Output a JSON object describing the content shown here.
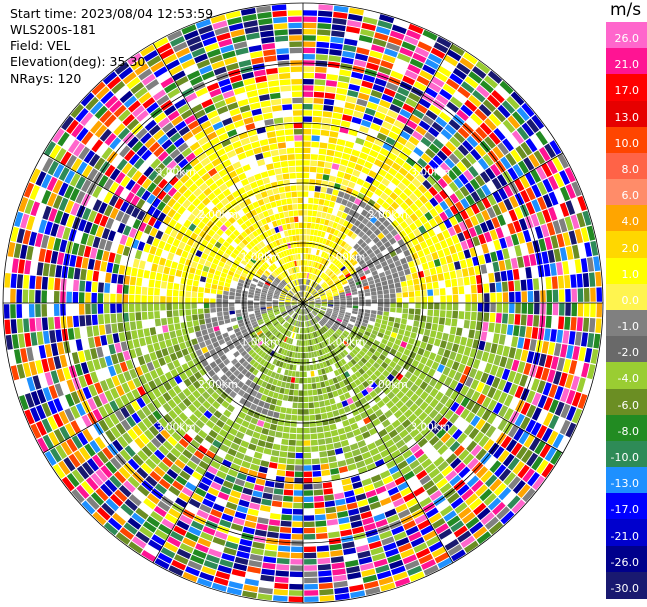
{
  "header": {
    "start_time": "Start time: 2023/08/04 12:53:59",
    "instrument": "WLS200s-181",
    "field": "Field: VEL",
    "elevation": "Elevation(deg): 35.30",
    "nrays": "NRays: 120"
  },
  "colorbar": {
    "unit": "m/s",
    "ticks": [
      "26.0",
      "21.0",
      "17.0",
      "13.0",
      "10.0",
      "8.0",
      "6.0",
      "4.0",
      "2.0",
      "1.0",
      "0.0",
      "-1.0",
      "-2.0",
      "-4.0",
      "-6.0",
      "-8.0",
      "-10.0",
      "-13.0",
      "-17.0",
      "-21.0",
      "-26.0",
      "-30.0"
    ],
    "colors": [
      "#ff66cc",
      "#ff1493",
      "#ff0000",
      "#e60000",
      "#ff4500",
      "#ff6347",
      "#ff8c69",
      "#ffa500",
      "#ffd700",
      "#ffff00",
      "#fff44f",
      "#808080",
      "#696969",
      "#9acd32",
      "#6b8e23",
      "#228b22",
      "#2e8b57",
      "#1e90ff",
      "#0000ff",
      "#0000cd",
      "#00008b",
      "#191970"
    ]
  },
  "chart_data": {
    "type": "ppi",
    "title": "",
    "field": "VEL",
    "units": "m/s",
    "range_rings_km": [
      1.0,
      2.0,
      3.0
    ],
    "ring_labels": [
      "1.00km",
      "2.00km",
      "3.00km"
    ],
    "n_rays": 120,
    "vmin": -30.0,
    "vmax": 26.0,
    "features": {
      "north_sector": "positive ~2 m/s (yellow)",
      "south_sector": "negative ~-2 to -4 m/s (green)",
      "near_center": "gray ~0 m/s swirl",
      "outer_ring": "noisy, full colour range"
    }
  }
}
